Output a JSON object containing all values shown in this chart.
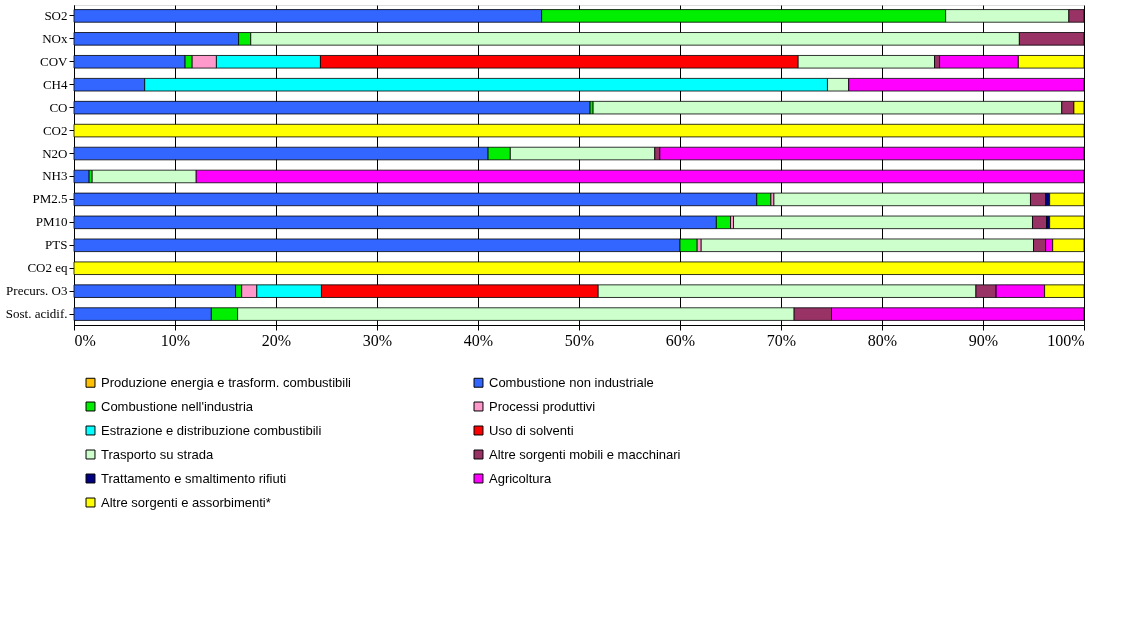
{
  "chart_data": {
    "type": "bar",
    "orientation": "horizontal",
    "stacked": true,
    "categories": [
      "SO2",
      "NOx",
      "COV",
      "CH4",
      "CO",
      "CO2",
      "N2O",
      "NH3",
      "PM2.5",
      "PM10",
      "PTS",
      "CO2 eq",
      "Precurs. O3",
      "Sost. acidif."
    ],
    "series": [
      {
        "name": "Produzione energia e trasform. combustibili",
        "color": "#ffc000",
        "values": [
          null,
          null,
          null,
          null,
          null,
          null,
          null,
          null,
          null,
          null,
          null,
          null,
          null,
          null
        ]
      },
      {
        "name": "Combustione non industriale",
        "color": "#3366ff",
        "values": [
          46.3,
          16.3,
          11.0,
          7.0,
          51.1,
          null,
          41.0,
          1.5,
          67.6,
          63.6,
          60.0,
          null,
          16.0,
          13.6
        ]
      },
      {
        "name": "Combustione nell'industria",
        "color": "#00ee00",
        "values": [
          40.0,
          1.2,
          0.7,
          null,
          0.3,
          null,
          2.2,
          0.3,
          1.4,
          1.4,
          1.7,
          null,
          0.6,
          2.6
        ]
      },
      {
        "name": "Processi produttivi",
        "color": "#ff99cc",
        "values": [
          null,
          null,
          2.4,
          null,
          null,
          null,
          null,
          null,
          0.3,
          0.3,
          0.4,
          null,
          1.5,
          null
        ]
      },
      {
        "name": "Estrazione e distribuzione combustibili",
        "color": "#00ffff",
        "values": [
          null,
          null,
          10.3,
          67.6,
          null,
          null,
          null,
          null,
          null,
          null,
          null,
          null,
          6.4,
          null
        ]
      },
      {
        "name": "Uso di solventi",
        "color": "#ff0000",
        "values": [
          null,
          null,
          47.3,
          null,
          null,
          null,
          null,
          null,
          null,
          null,
          null,
          null,
          27.4,
          null
        ]
      },
      {
        "name": "Trasporto su strada",
        "color": "#ccffcc",
        "values": [
          12.2,
          76.1,
          13.5,
          2.1,
          46.4,
          null,
          14.3,
          10.3,
          25.4,
          29.6,
          32.9,
          null,
          37.4,
          55.1
        ]
      },
      {
        "name": "Altre sorgenti mobili e macchinari",
        "color": "#993366",
        "values": [
          1.5,
          6.4,
          0.5,
          null,
          1.2,
          null,
          0.5,
          null,
          1.5,
          1.4,
          1.2,
          null,
          2.0,
          3.7
        ]
      },
      {
        "name": "Trattamento e smaltimento rifiuti",
        "color": "#000080",
        "values": [
          null,
          null,
          null,
          null,
          null,
          null,
          null,
          null,
          0.4,
          0.3,
          null,
          null,
          null,
          null
        ]
      },
      {
        "name": "Agricoltura",
        "color": "#ff00ff",
        "values": [
          null,
          null,
          7.8,
          23.3,
          null,
          null,
          42.0,
          87.9,
          null,
          null,
          0.7,
          null,
          4.8,
          25.0
        ]
      },
      {
        "name": "Altre sorgenti e assorbimenti*",
        "color": "#ffff00",
        "values": [
          null,
          null,
          6.5,
          null,
          1.0,
          100,
          null,
          null,
          3.4,
          3.4,
          3.1,
          100,
          3.9,
          null
        ]
      }
    ],
    "xlim": [
      0,
      100
    ],
    "xticks": [
      {
        "value": 0,
        "label": "0%"
      },
      {
        "value": 10,
        "label": "10%"
      },
      {
        "value": 20,
        "label": "20%"
      },
      {
        "value": 30,
        "label": "30%"
      },
      {
        "value": 40,
        "label": "40%"
      },
      {
        "value": 50,
        "label": "50%"
      },
      {
        "value": 60,
        "label": "60%"
      },
      {
        "value": 70,
        "label": "70%"
      },
      {
        "value": 80,
        "label": "80%"
      },
      {
        "value": 90,
        "label": "90%"
      },
      {
        "value": 100,
        "label": "100%"
      }
    ],
    "grid": "x",
    "legend": "bottom"
  }
}
